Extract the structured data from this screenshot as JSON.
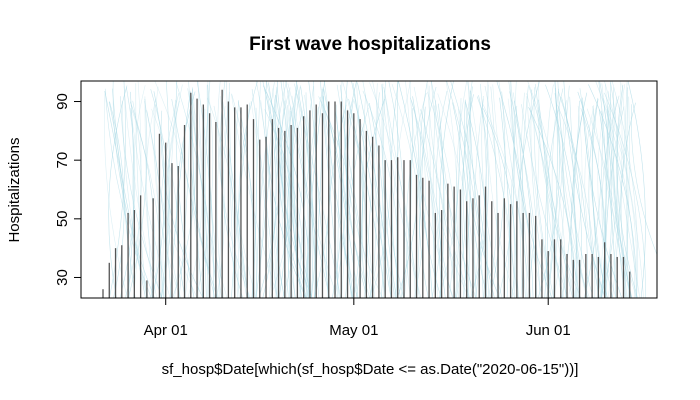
{
  "chart_data": {
    "type": "bar",
    "title": "First wave hospitalizations",
    "xlabel": "sf_hosp$Date[which(sf_hosp$Date <= as.Date(\"2020-06-15\"))]",
    "ylabel": "Hospitalizations",
    "x_start_date": "2020-03-22",
    "x_end_date": "2020-06-15",
    "x_ticks": [
      {
        "label": "Apr 01",
        "date": "2020-04-01"
      },
      {
        "label": "May 01",
        "date": "2020-05-01"
      },
      {
        "label": "Jun 01",
        "date": "2020-06-01"
      }
    ],
    "y_ticks": [
      30,
      50,
      70,
      90
    ],
    "ylim": [
      23,
      97
    ],
    "bar_color": "#555555",
    "background_texture_color": "#a8d8e4",
    "values": [
      26,
      35,
      40,
      41,
      52,
      53,
      58,
      29,
      57,
      79,
      76,
      69,
      68,
      82,
      93,
      91,
      89,
      86,
      83,
      94,
      90,
      88,
      88,
      89,
      84,
      77,
      78,
      84,
      81,
      80,
      82,
      81,
      85,
      87,
      89,
      86,
      90,
      90,
      90,
      87,
      86,
      84,
      80,
      78,
      75,
      70,
      70,
      71,
      70,
      70,
      65,
      64,
      63,
      52,
      53,
      62,
      61,
      60,
      56,
      57,
      58,
      61,
      56,
      52,
      57,
      55,
      56,
      52,
      52,
      51,
      43,
      39,
      43,
      43,
      38,
      36,
      36,
      38,
      38,
      37,
      42,
      38,
      37,
      37,
      32
    ]
  }
}
